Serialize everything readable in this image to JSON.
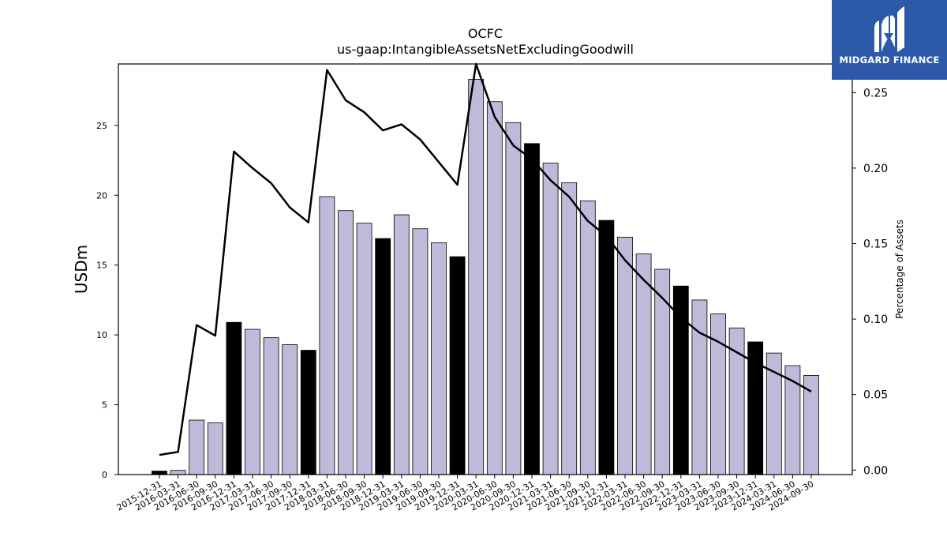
{
  "brand": {
    "name": "MIDGARD FINANCE",
    "bg_color": "#2d5aa8"
  },
  "chart_data": {
    "type": "bar",
    "title": "OCFC",
    "subtitle": "us-gaap:IntangibleAssetsNetExcludingGoodwill",
    "ylabel": "USDm",
    "y2label": "Percentage of Assets",
    "ylim": [
      0,
      29.4
    ],
    "y2lim": [
      -0.003,
      0.269
    ],
    "yticks": [
      0,
      5,
      10,
      15,
      20,
      25
    ],
    "y2ticks": [
      0.0,
      0.05,
      0.1,
      0.15,
      0.2,
      0.25
    ],
    "categories": [
      "2015-12-31",
      "2016-03-31",
      "2016-06-30",
      "2016-09-30",
      "2016-12-31",
      "2017-03-31",
      "2017-06-30",
      "2017-09-30",
      "2017-12-31",
      "2018-03-31",
      "2018-06-30",
      "2018-09-30",
      "2018-12-31",
      "2019-03-31",
      "2019-06-30",
      "2019-09-30",
      "2019-12-31",
      "2020-03-31",
      "2020-06-30",
      "2020-09-30",
      "2020-12-31",
      "2021-03-31",
      "2021-06-30",
      "2021-09-30",
      "2021-12-31",
      "2022-03-31",
      "2022-06-30",
      "2022-09-30",
      "2022-12-31",
      "2023-03-31",
      "2023-06-30",
      "2023-09-30",
      "2023-12-31",
      "2024-03-31",
      "2024-06-30",
      "2024-09-30"
    ],
    "series": [
      {
        "kind": "bar",
        "values": [
          0.25,
          0.3,
          3.9,
          3.7,
          10.9,
          10.4,
          9.8,
          9.3,
          8.9,
          19.9,
          18.9,
          18.0,
          16.9,
          18.6,
          17.6,
          16.6,
          15.6,
          28.3,
          26.7,
          25.2,
          23.7,
          22.3,
          20.9,
          19.6,
          18.2,
          17.0,
          15.8,
          14.7,
          13.5,
          12.5,
          11.5,
          10.5,
          9.5,
          8.7,
          7.8,
          7.1
        ],
        "highlight_indices": [
          0,
          4,
          8,
          12,
          16,
          20,
          24,
          28,
          32
        ],
        "color": "#bebbda",
        "highlight_color": "#000000"
      },
      {
        "kind": "line",
        "axis": "right",
        "color": "#000000",
        "values": [
          0.01,
          0.012,
          0.096,
          0.089,
          0.211,
          0.2,
          0.19,
          0.174,
          0.164,
          0.265,
          0.245,
          0.237,
          0.225,
          0.229,
          0.219,
          0.204,
          0.189,
          0.269,
          0.234,
          0.215,
          0.206,
          0.192,
          0.181,
          0.165,
          0.155,
          0.139,
          0.126,
          0.114,
          0.101,
          0.091,
          0.085,
          0.078,
          0.071,
          0.065,
          0.059,
          0.052
        ]
      }
    ],
    "grid": false,
    "legend": "none"
  }
}
